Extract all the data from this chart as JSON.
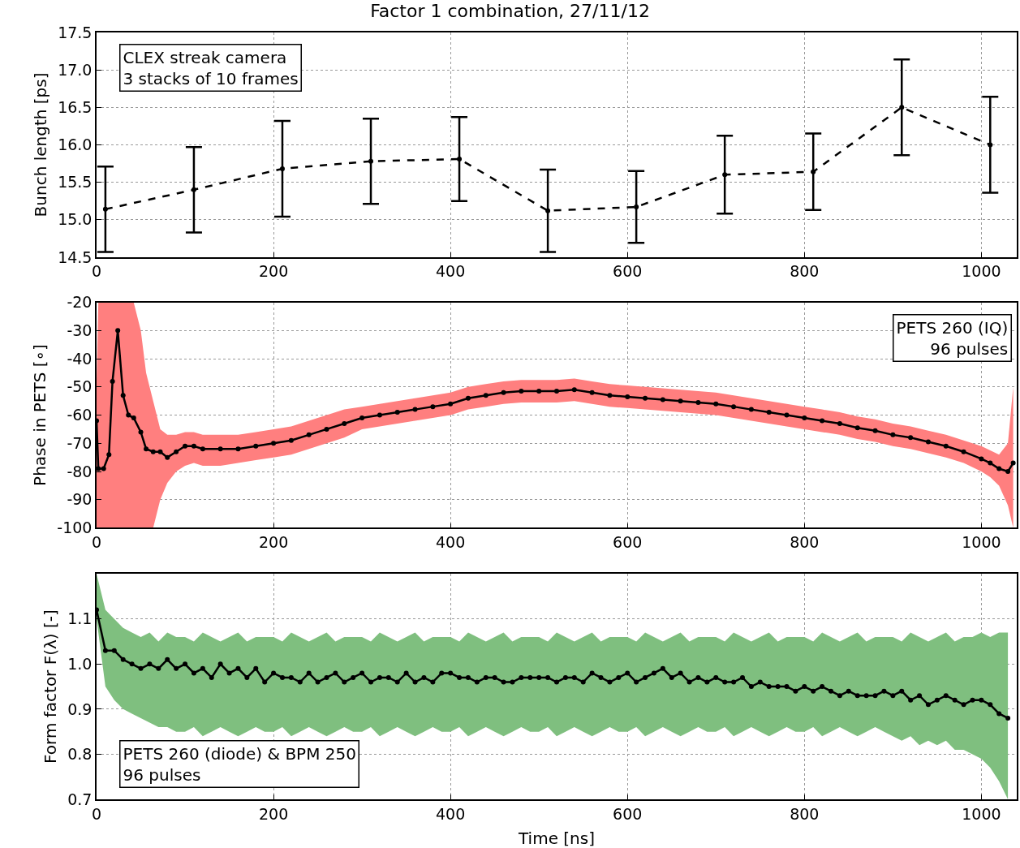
{
  "chart_data": [
    {
      "type": "line",
      "title": "Factor 1 combination, 27/11/12",
      "ylabel": "Bunch length [ps]",
      "annotations": [
        "CLEX streak camera\n3 stacks of 10 frames"
      ],
      "xlim": [
        0,
        1040
      ],
      "xticks": [
        0,
        200,
        400,
        600,
        800,
        1000
      ],
      "ylim": [
        14.5,
        17.5
      ],
      "yticks": [
        14.5,
        {
          "value": 15,
          "label": "15.0"
        },
        15.5,
        {
          "value": 16,
          "label": "16.0"
        },
        16.5,
        {
          "value": 17,
          "label": "17.0"
        },
        17.5
      ],
      "grid": true,
      "marker": "circle",
      "line_style": "dashed",
      "x": [
        10,
        110,
        210,
        310,
        410,
        510,
        610,
        710,
        810,
        910,
        1010
      ],
      "series": [
        {
          "color": "#000000",
          "values": [
            15.14,
            15.4,
            15.68,
            15.78,
            15.81,
            15.12,
            15.17,
            15.6,
            15.64,
            16.5,
            16.0
          ],
          "errors": [
            0.57,
            0.57,
            0.64,
            0.57,
            0.56,
            0.55,
            0.48,
            0.52,
            0.51,
            0.64,
            0.64
          ]
        }
      ]
    },
    {
      "type": "line",
      "ylabel": "Phase in PETS [∘]",
      "annotations": [
        "PETS 260 (IQ)\n96 pulses"
      ],
      "xlim": [
        0,
        1040
      ],
      "xticks": [
        0,
        200,
        400,
        600,
        800,
        1000
      ],
      "ylim": [
        -100,
        -20
      ],
      "yticks": [
        -100,
        -90,
        -80,
        -70,
        -60,
        -50,
        -40,
        -30,
        -20
      ],
      "grid": true,
      "marker": "circle",
      "line_style": "solid",
      "x": [
        0,
        2,
        8,
        14,
        18,
        24,
        30,
        36,
        42,
        50,
        56,
        64,
        72,
        80,
        90,
        100,
        110,
        120,
        140,
        160,
        180,
        200,
        220,
        240,
        260,
        280,
        300,
        320,
        340,
        360,
        380,
        400,
        420,
        440,
        460,
        480,
        500,
        520,
        540,
        560,
        580,
        600,
        620,
        640,
        660,
        680,
        700,
        720,
        740,
        760,
        780,
        800,
        820,
        840,
        860,
        880,
        900,
        920,
        940,
        960,
        980,
        1000,
        1010,
        1020,
        1030,
        1036
      ],
      "series": [
        {
          "color": "#000000",
          "values": [
            -62,
            -79,
            -79,
            -74,
            -48,
            -30,
            -53,
            -60,
            -61,
            -66,
            -72,
            -73,
            -73,
            -75,
            -73,
            -71,
            -71,
            -72,
            -72,
            -72,
            -71,
            -70,
            -69,
            -67,
            -65,
            -63,
            -61,
            -60,
            -59,
            -58,
            -57,
            -56,
            -54,
            -53,
            -52,
            -51.5,
            -51.5,
            -51.5,
            -51,
            -52,
            -53,
            -53.5,
            -54,
            -54.5,
            -55,
            -55.5,
            -56,
            -57,
            -58,
            -59,
            -60,
            -61,
            -62,
            -63,
            -64.5,
            -65.5,
            -67,
            -68,
            -69.5,
            -71,
            -73,
            -75.5,
            -77,
            -79,
            -80,
            -77
          ],
          "upper": [
            -48,
            -20,
            -20,
            -20,
            -20,
            -20,
            -20,
            -20,
            -20,
            -30,
            -45,
            -55,
            -65,
            -67,
            -67,
            -66,
            -66,
            -67,
            -67,
            -67,
            -66,
            -65,
            -64,
            -62,
            -60,
            -58,
            -57,
            -56,
            -55,
            -54,
            -53,
            -52,
            -50,
            -49,
            -48,
            -47.5,
            -47.5,
            -47.5,
            -47,
            -48,
            -49,
            -49.5,
            -50,
            -50.5,
            -51,
            -51.5,
            -52,
            -53,
            -54,
            -55,
            -56,
            -57,
            -58,
            -59,
            -60.5,
            -61.5,
            -63,
            -64,
            -65.5,
            -67,
            -69,
            -71,
            -72.5,
            -74,
            -70,
            -50
          ],
          "lower": [
            -100,
            -100,
            -100,
            -100,
            -100,
            -100,
            -100,
            -100,
            -100,
            -100,
            -100,
            -100,
            -90,
            -84,
            -80,
            -78,
            -77,
            -78,
            -78,
            -77,
            -76,
            -75,
            -74,
            -72,
            -70,
            -68,
            -65,
            -64,
            -63,
            -62,
            -61,
            -60,
            -58,
            -57,
            -56,
            -55.5,
            -55.5,
            -55.5,
            -55,
            -56,
            -57,
            -57.5,
            -58,
            -58.5,
            -59,
            -59.5,
            -60,
            -61,
            -62,
            -63,
            -64,
            -65,
            -66,
            -67,
            -68.5,
            -69.5,
            -71,
            -72,
            -73.5,
            -75,
            -77,
            -80,
            -82,
            -85,
            -92,
            -100
          ]
        }
      ]
    },
    {
      "type": "line",
      "xlabel": "Time [ns]",
      "ylabel": "Form factor F(λ) [-]",
      "annotations": [
        "PETS 260 (diode) & BPM 250\n96 pulses"
      ],
      "xlim": [
        0,
        1040
      ],
      "xticks": [
        0,
        200,
        400,
        600,
        800,
        1000
      ],
      "ylim": [
        0.7,
        1.2
      ],
      "yticks": [
        0.7,
        0.8,
        0.9,
        {
          "value": 1,
          "label": "1.0"
        },
        1.1
      ],
      "grid": true,
      "marker": "circle",
      "line_style": "solid",
      "x": [
        0,
        10,
        20,
        30,
        40,
        50,
        60,
        70,
        80,
        90,
        100,
        110,
        120,
        130,
        140,
        150,
        160,
        170,
        180,
        190,
        200,
        210,
        220,
        230,
        240,
        250,
        260,
        270,
        280,
        290,
        300,
        310,
        320,
        330,
        340,
        350,
        360,
        370,
        380,
        390,
        400,
        410,
        420,
        430,
        440,
        450,
        460,
        470,
        480,
        490,
        500,
        510,
        520,
        530,
        540,
        550,
        560,
        570,
        580,
        590,
        600,
        610,
        620,
        630,
        640,
        650,
        660,
        670,
        680,
        690,
        700,
        710,
        720,
        730,
        740,
        750,
        760,
        770,
        780,
        790,
        800,
        810,
        820,
        830,
        840,
        850,
        860,
        870,
        880,
        890,
        900,
        910,
        920,
        930,
        940,
        950,
        960,
        970,
        980,
        990,
        1000,
        1010,
        1020,
        1030
      ],
      "series": [
        {
          "color": "#000000",
          "values": [
            1.12,
            1.03,
            1.03,
            1.01,
            1.0,
            0.99,
            1.0,
            0.99,
            1.01,
            0.99,
            1.0,
            0.98,
            0.99,
            0.97,
            1.0,
            0.98,
            0.99,
            0.97,
            0.99,
            0.96,
            0.98,
            0.97,
            0.97,
            0.96,
            0.98,
            0.96,
            0.97,
            0.98,
            0.96,
            0.97,
            0.98,
            0.96,
            0.97,
            0.97,
            0.96,
            0.98,
            0.96,
            0.97,
            0.96,
            0.98,
            0.98,
            0.97,
            0.97,
            0.96,
            0.97,
            0.97,
            0.96,
            0.96,
            0.97,
            0.97,
            0.97,
            0.97,
            0.96,
            0.97,
            0.97,
            0.96,
            0.98,
            0.97,
            0.96,
            0.97,
            0.98,
            0.96,
            0.97,
            0.98,
            0.99,
            0.97,
            0.98,
            0.96,
            0.97,
            0.96,
            0.97,
            0.96,
            0.96,
            0.97,
            0.95,
            0.96,
            0.95,
            0.95,
            0.95,
            0.94,
            0.95,
            0.94,
            0.95,
            0.94,
            0.93,
            0.94,
            0.93,
            0.93,
            0.93,
            0.94,
            0.93,
            0.94,
            0.92,
            0.93,
            0.91,
            0.92,
            0.93,
            0.92,
            0.91,
            0.92,
            0.92,
            0.91,
            0.89,
            0.88
          ],
          "upper": [
            1.2,
            1.12,
            1.1,
            1.08,
            1.07,
            1.06,
            1.07,
            1.05,
            1.07,
            1.06,
            1.06,
            1.05,
            1.07,
            1.06,
            1.05,
            1.06,
            1.07,
            1.05,
            1.06,
            1.06,
            1.06,
            1.05,
            1.07,
            1.06,
            1.05,
            1.06,
            1.07,
            1.05,
            1.06,
            1.06,
            1.06,
            1.05,
            1.07,
            1.06,
            1.05,
            1.06,
            1.07,
            1.05,
            1.06,
            1.06,
            1.06,
            1.05,
            1.07,
            1.06,
            1.05,
            1.06,
            1.07,
            1.05,
            1.06,
            1.06,
            1.06,
            1.05,
            1.07,
            1.06,
            1.05,
            1.06,
            1.07,
            1.05,
            1.06,
            1.06,
            1.06,
            1.05,
            1.07,
            1.06,
            1.05,
            1.06,
            1.07,
            1.05,
            1.06,
            1.06,
            1.06,
            1.05,
            1.07,
            1.06,
            1.05,
            1.06,
            1.07,
            1.05,
            1.06,
            1.06,
            1.06,
            1.05,
            1.07,
            1.06,
            1.05,
            1.06,
            1.07,
            1.05,
            1.06,
            1.06,
            1.06,
            1.05,
            1.07,
            1.06,
            1.05,
            1.06,
            1.07,
            1.05,
            1.06,
            1.06,
            1.07,
            1.06,
            1.07,
            1.07
          ],
          "lower": [
            1.1,
            0.95,
            0.92,
            0.9,
            0.89,
            0.88,
            0.87,
            0.86,
            0.86,
            0.85,
            0.85,
            0.86,
            0.84,
            0.85,
            0.86,
            0.85,
            0.84,
            0.85,
            0.86,
            0.85,
            0.85,
            0.86,
            0.84,
            0.85,
            0.86,
            0.85,
            0.84,
            0.85,
            0.86,
            0.85,
            0.85,
            0.86,
            0.84,
            0.85,
            0.86,
            0.85,
            0.84,
            0.85,
            0.86,
            0.85,
            0.85,
            0.86,
            0.84,
            0.85,
            0.86,
            0.85,
            0.84,
            0.85,
            0.86,
            0.85,
            0.85,
            0.86,
            0.84,
            0.85,
            0.86,
            0.85,
            0.84,
            0.85,
            0.86,
            0.85,
            0.85,
            0.86,
            0.84,
            0.85,
            0.86,
            0.85,
            0.84,
            0.85,
            0.86,
            0.85,
            0.85,
            0.86,
            0.84,
            0.85,
            0.86,
            0.85,
            0.84,
            0.85,
            0.86,
            0.85,
            0.85,
            0.86,
            0.84,
            0.85,
            0.86,
            0.85,
            0.84,
            0.85,
            0.86,
            0.85,
            0.84,
            0.83,
            0.84,
            0.82,
            0.83,
            0.82,
            0.83,
            0.81,
            0.81,
            0.8,
            0.79,
            0.77,
            0.74,
            0.7
          ]
        }
      ]
    }
  ]
}
